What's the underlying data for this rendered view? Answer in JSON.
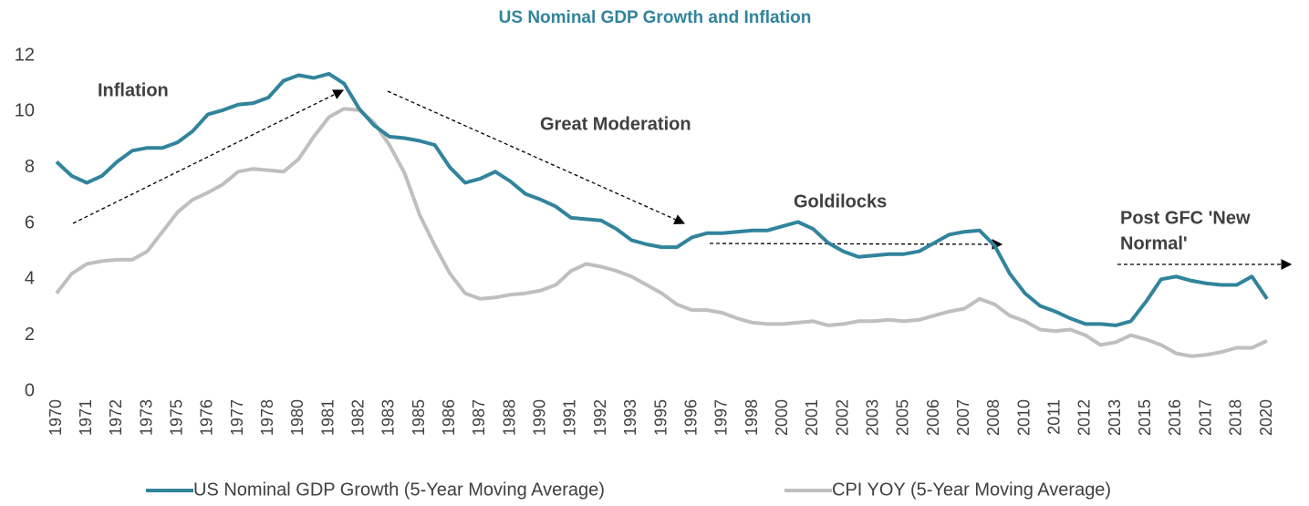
{
  "chart_data": {
    "type": "line",
    "title": "US Nominal GDP Growth and Inflation",
    "categories": [
      "1970",
      null,
      "1971",
      null,
      "1972",
      null,
      "1973",
      null,
      "1975",
      null,
      "1976",
      null,
      "1977",
      null,
      "1978",
      null,
      "1980",
      null,
      "1981",
      null,
      "1982",
      null,
      "1983",
      null,
      "1985",
      null,
      "1986",
      null,
      "1987",
      null,
      "1988",
      null,
      "1990",
      null,
      "1991",
      null,
      "1992",
      null,
      "1993",
      null,
      "1995",
      null,
      "1996",
      null,
      "1997",
      null,
      "1998",
      null,
      "2000",
      null,
      "2001",
      null,
      "2002",
      null,
      "2003",
      null,
      "2005",
      null,
      "2006",
      null,
      "2007",
      null,
      "2008",
      null,
      "2010",
      null,
      "2011",
      null,
      "2012",
      null,
      "2013",
      null,
      "2015",
      null,
      "2016",
      null,
      "2017",
      null,
      "2018",
      null,
      "2020"
    ],
    "series": [
      {
        "name": "US Nominal GDP Growth (5-Year Moving Average)",
        "color": "#31849b",
        "values": [
          8.2,
          7.7,
          7.45,
          7.7,
          8.2,
          8.6,
          8.7,
          8.7,
          8.9,
          9.3,
          9.9,
          10.05,
          10.25,
          10.3,
          10.5,
          11.1,
          11.3,
          11.2,
          11.35,
          11.0,
          10.1,
          9.5,
          9.1,
          9.05,
          8.95,
          8.8,
          8.0,
          7.45,
          7.6,
          7.85,
          7.5,
          7.05,
          6.85,
          6.6,
          6.2,
          6.15,
          6.1,
          5.8,
          5.4,
          5.25,
          5.15,
          5.15,
          5.5,
          5.65,
          5.65,
          5.7,
          5.75,
          5.75,
          5.9,
          6.05,
          5.8,
          5.3,
          5.0,
          4.8,
          4.85,
          4.9,
          4.9,
          5.0,
          5.3,
          5.6,
          5.7,
          5.75,
          5.2,
          4.2,
          3.5,
          3.05,
          2.85,
          2.6,
          2.4,
          2.4,
          2.35,
          2.5,
          3.2,
          4.0,
          4.1,
          3.95,
          3.85,
          3.8,
          3.8,
          4.1,
          3.3
        ]
      },
      {
        "name": "CPI YOY (5-Year Moving Average)",
        "color": "#bfbfbf",
        "values": [
          3.5,
          4.2,
          4.55,
          4.65,
          4.7,
          4.7,
          5.0,
          5.7,
          6.4,
          6.85,
          7.1,
          7.4,
          7.85,
          7.95,
          7.9,
          7.85,
          8.3,
          9.1,
          9.8,
          10.1,
          10.05,
          9.6,
          8.8,
          7.8,
          6.3,
          5.2,
          4.2,
          3.5,
          3.3,
          3.35,
          3.45,
          3.5,
          3.6,
          3.8,
          4.3,
          4.55,
          4.45,
          4.3,
          4.1,
          3.8,
          3.5,
          3.1,
          2.9,
          2.9,
          2.8,
          2.6,
          2.45,
          2.4,
          2.4,
          2.45,
          2.5,
          2.35,
          2.4,
          2.5,
          2.5,
          2.55,
          2.5,
          2.55,
          2.7,
          2.85,
          2.95,
          3.3,
          3.1,
          2.7,
          2.5,
          2.2,
          2.15,
          2.2,
          2.0,
          1.65,
          1.75,
          2.0,
          1.85,
          1.65,
          1.35,
          1.25,
          1.3,
          1.4,
          1.55,
          1.55,
          1.8
        ]
      }
    ],
    "ylim": [
      0,
      12
    ],
    "yticks": [
      0,
      2,
      4,
      6,
      8,
      10,
      12
    ],
    "grid": false,
    "annotations": [
      "Inflation",
      "Great Moderation",
      "Goldilocks",
      "Post GFC 'New",
      "Normal'"
    ],
    "legend": "bottom"
  }
}
